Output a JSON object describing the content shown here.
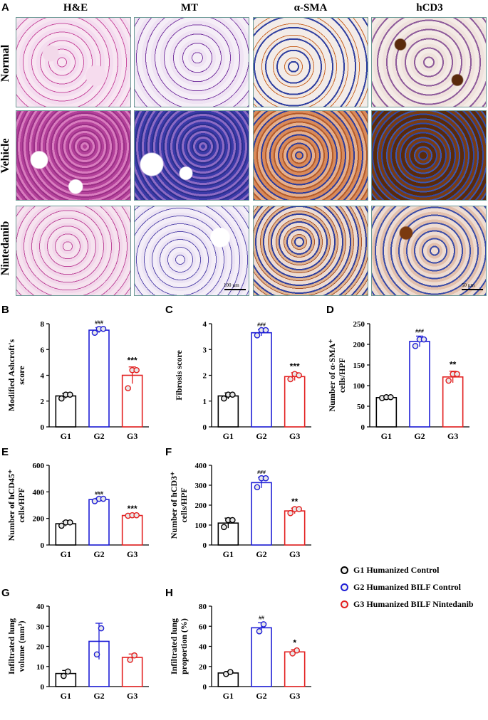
{
  "panelA": {
    "letter": "A",
    "columns": [
      "H&E",
      "MT",
      "α-SMA",
      "hCD3"
    ],
    "rows": [
      "Normal",
      "Vehicle",
      "Nintedanib"
    ],
    "scalebars": [
      "100 µm",
      "50 µm"
    ]
  },
  "colors": {
    "G1": "#000000",
    "G2": "#1f1fd6",
    "G3": "#e32020"
  },
  "legend": {
    "items": [
      {
        "label": "G1 Humanized Control",
        "color": "#000000"
      },
      {
        "label": "G2 Humanized BILF Control",
        "color": "#1f1fd6"
      },
      {
        "label": "G3 Humanized BILF Nintedanib",
        "color": "#e32020"
      }
    ]
  },
  "chart_data": [
    {
      "id": "B",
      "type": "bar",
      "ylabel": [
        "Modified Ashcroft's",
        "score"
      ],
      "categories": [
        "G1",
        "G2",
        "G3"
      ],
      "values": [
        2.4,
        7.5,
        4.0
      ],
      "errors": [
        0.2,
        0.2,
        0.65
      ],
      "ylim": [
        0,
        8
      ],
      "yticks": [
        0,
        2,
        4,
        6,
        8
      ],
      "points": [
        [
          2.2,
          2.5,
          2.5
        ],
        [
          7.3,
          7.6,
          7.6
        ],
        [
          3.0,
          4.4,
          4.4
        ]
      ],
      "sig": [
        "",
        "###",
        "***"
      ]
    },
    {
      "id": "C",
      "type": "bar",
      "ylabel": [
        "Fibrosis score"
      ],
      "categories": [
        "G1",
        "G2",
        "G3"
      ],
      "values": [
        1.2,
        3.65,
        1.95
      ],
      "errors": [
        0.12,
        0.12,
        0.15
      ],
      "ylim": [
        0,
        4
      ],
      "yticks": [
        0,
        1,
        2,
        3,
        4
      ],
      "points": [
        [
          1.1,
          1.25,
          1.25
        ],
        [
          3.55,
          3.75,
          3.75
        ],
        [
          1.85,
          2.05,
          2.0
        ]
      ],
      "sig": [
        "",
        "###",
        "***"
      ]
    },
    {
      "id": "D",
      "type": "bar",
      "ylabel": [
        "Number of α-SMA⁺",
        "cells/HPF"
      ],
      "categories": [
        "G1",
        "G2",
        "G3"
      ],
      "values": [
        71,
        207,
        121
      ],
      "errors": [
        4,
        13,
        14
      ],
      "ylim": [
        0,
        250
      ],
      "yticks": [
        0,
        50,
        100,
        150,
        200,
        250
      ],
      "points": [
        [
          70,
          72,
          72
        ],
        [
          196,
          212,
          212
        ],
        [
          112,
          128,
          128
        ]
      ],
      "sig": [
        "",
        "###",
        "**"
      ]
    },
    {
      "id": "E",
      "type": "bar",
      "ylabel": [
        "Number of hCD45⁺",
        "cells/HPF"
      ],
      "categories": [
        "G1",
        "G2",
        "G3"
      ],
      "values": [
        160,
        342,
        222
      ],
      "errors": [
        18,
        10,
        3
      ],
      "ylim": [
        0,
        600
      ],
      "yticks": [
        0,
        200,
        400,
        600
      ],
      "points": [
        [
          145,
          170,
          170
        ],
        [
          330,
          348,
          348
        ],
        [
          220,
          224,
          224
        ]
      ],
      "sig": [
        "",
        "###",
        "***"
      ]
    },
    {
      "id": "F",
      "type": "bar",
      "ylabel": [
        "Number of hCD3⁺",
        "cells/HPF"
      ],
      "categories": [
        "G1",
        "G2",
        "G3"
      ],
      "values": [
        110,
        313,
        171
      ],
      "errors": [
        25,
        27,
        14
      ],
      "ylim": [
        0,
        400
      ],
      "yticks": [
        0,
        100,
        200,
        300,
        400
      ],
      "points": [
        [
          90,
          125,
          125
        ],
        [
          290,
          335,
          335
        ],
        [
          160,
          180,
          180
        ]
      ],
      "sig": [
        "",
        "###",
        "**"
      ]
    },
    {
      "id": "G",
      "type": "bar",
      "ylabel": [
        "Infiltrated lung",
        "volume (mm³)"
      ],
      "categories": [
        "G1",
        "G2",
        "G3"
      ],
      "values": [
        6.5,
        22.5,
        14.5
      ],
      "errors": [
        1.5,
        9,
        1.7
      ],
      "ylim": [
        0,
        40
      ],
      "yticks": [
        0,
        10,
        20,
        30,
        40
      ],
      "points": [
        [
          5.3,
          7.5
        ],
        [
          16.0,
          29.0
        ],
        [
          13.3,
          15.5
        ]
      ],
      "sig": [
        "",
        "",
        ""
      ]
    },
    {
      "id": "H",
      "type": "bar",
      "ylabel": [
        "Infiltrated lung",
        "proportion (%)"
      ],
      "categories": [
        "G1",
        "G2",
        "G3"
      ],
      "values": [
        13.5,
        58.5,
        34.5
      ],
      "errors": [
        1.5,
        5,
        2.5
      ],
      "ylim": [
        0,
        80
      ],
      "yticks": [
        0,
        20,
        40,
        60,
        80
      ],
      "points": [
        [
          12.5,
          14.5
        ],
        [
          55,
          62
        ],
        [
          33,
          36
        ]
      ],
      "sig": [
        "",
        "##",
        "*"
      ]
    }
  ]
}
